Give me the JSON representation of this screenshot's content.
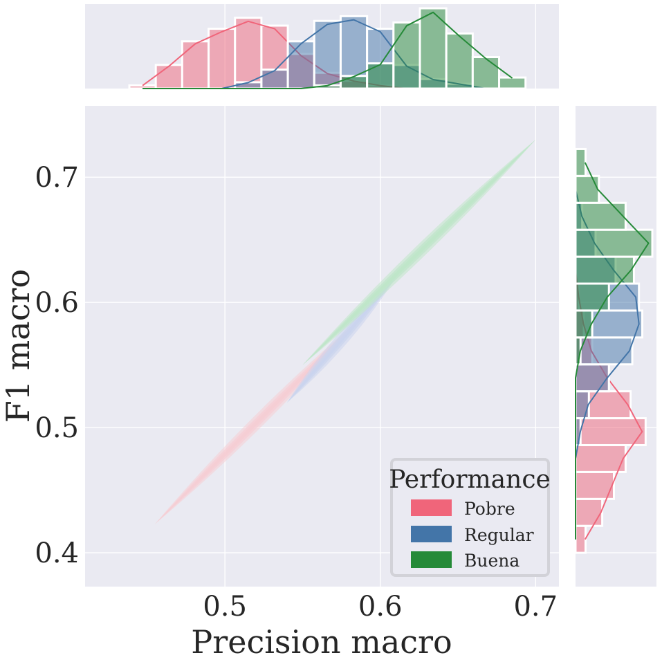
{
  "chart_data": {
    "type": "jointplot",
    "main": {
      "type": "kde-contour",
      "xlabel": "Precision macro",
      "ylabel": "F1 macro",
      "xlim": [
        0.41,
        0.715
      ],
      "ylim": [
        0.373,
        0.757
      ],
      "xticks": [
        0.5,
        0.6,
        0.7
      ],
      "yticks": [
        0.4,
        0.5,
        0.6,
        0.7
      ],
      "xtick_labels": [
        "0.5",
        "0.6",
        "0.7"
      ],
      "ytick_labels": [
        "0.4",
        "0.5",
        "0.6",
        "0.7"
      ],
      "grid": true,
      "series": [
        {
          "name": "Pobre",
          "precision_range": [
            0.455,
            0.59
          ],
          "f1_range": [
            0.423,
            0.59
          ],
          "color": "#f5cdd4"
        },
        {
          "name": "Regular",
          "precision_range": [
            0.54,
            0.61
          ],
          "f1_range": [
            0.52,
            0.62
          ],
          "color": "#cad4ee"
        },
        {
          "name": "Buena",
          "precision_range": [
            0.55,
            0.7
          ],
          "f1_range": [
            0.55,
            0.73
          ],
          "color": "#bfe6c9"
        }
      ]
    },
    "top_histogram": {
      "type": "histogram+kde",
      "variable": "Precision macro",
      "bin_edges": [
        0.4385,
        0.4555,
        0.4725,
        0.4895,
        0.5065,
        0.5235,
        0.5405,
        0.5575,
        0.5745,
        0.5915,
        0.6085,
        0.6255,
        0.6425,
        0.6595,
        0.6765,
        0.6935
      ],
      "series": [
        {
          "name": "Pobre",
          "counts": [
            2,
            15,
            30,
            38,
            45,
            40,
            22,
            10,
            5,
            2,
            0,
            0,
            0,
            0,
            0
          ]
        },
        {
          "name": "Regular",
          "counts": [
            0,
            0,
            0,
            0,
            4,
            12,
            30,
            43,
            46,
            38,
            15,
            6,
            3,
            0,
            0
          ]
        },
        {
          "name": "Buena",
          "counts": [
            0,
            0,
            0,
            0,
            0,
            0,
            0,
            2,
            8,
            16,
            42,
            51,
            35,
            20,
            7
          ]
        }
      ]
    },
    "right_histogram": {
      "type": "histogram+kde",
      "variable": "F1 macro",
      "bin_edges": [
        0.4,
        0.4215,
        0.443,
        0.4645,
        0.486,
        0.5075,
        0.529,
        0.5505,
        0.572,
        0.5935,
        0.615,
        0.6365,
        0.658,
        0.6795,
        0.701,
        0.7225
      ],
      "series": [
        {
          "name": "Pobre",
          "counts": [
            6,
            16,
            23,
            30,
            42,
            33,
            20,
            10,
            5,
            2,
            0,
            0,
            0,
            0,
            0
          ]
        },
        {
          "name": "Regular",
          "counts": [
            0,
            0,
            0,
            0,
            3,
            8,
            20,
            34,
            40,
            38,
            24,
            12,
            4,
            0,
            0
          ]
        },
        {
          "name": "Buena",
          "counts": [
            0,
            0,
            0,
            0,
            0,
            0,
            0,
            3,
            10,
            20,
            35,
            46,
            30,
            14,
            6
          ]
        }
      ]
    },
    "legend": {
      "title": "Performance",
      "position": "lower-right",
      "entries": [
        {
          "label": "Pobre",
          "color": "#f0657a"
        },
        {
          "label": "Regular",
          "color": "#4375a8"
        },
        {
          "label": "Buena",
          "color": "#258a38"
        }
      ]
    },
    "colors": {
      "Pobre": "#f0657a",
      "Regular": "#4375a8",
      "Buena": "#258a38",
      "background": "#eaeaf2",
      "grid": "#ffffff",
      "text": "#262626"
    }
  }
}
